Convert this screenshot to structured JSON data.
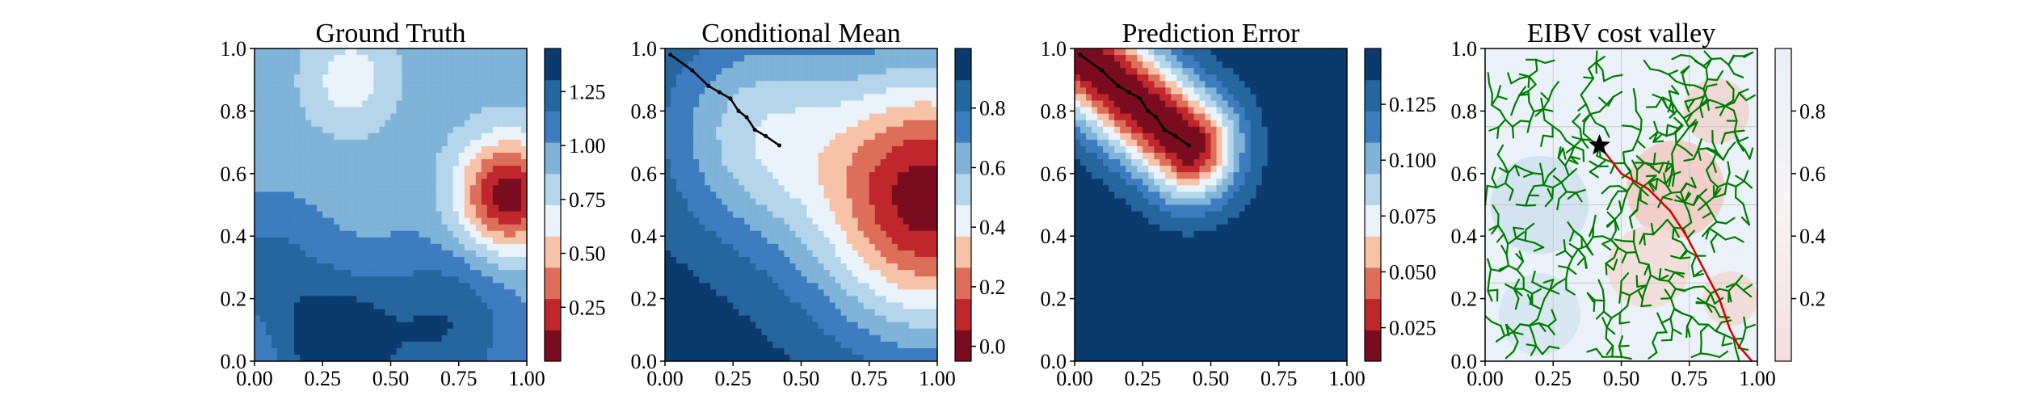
{
  "chart_data": [
    {
      "type": "heatmap",
      "title": "Ground Truth",
      "xlabel": "",
      "ylabel": "",
      "xlim": [
        0,
        1
      ],
      "ylim": [
        0,
        1
      ],
      "x_ticks": [
        "0.00",
        "0.25",
        "0.50",
        "0.75",
        "1.00"
      ],
      "y_ticks": [
        "0.0",
        "0.2",
        "0.4",
        "0.6",
        "0.8",
        "1.0"
      ],
      "colormap": "RdBu",
      "colorbar": {
        "range": [
          0.0,
          1.45
        ],
        "ticks": [
          "0.25",
          "0.50",
          "0.75",
          "1.00",
          "1.25"
        ],
        "tick_values": [
          0.25,
          0.5,
          0.75,
          1.0,
          1.25
        ]
      },
      "field_peaks": [
        {
          "x": 0.93,
          "y": 0.53,
          "value": 0.05,
          "radius": 0.13
        },
        {
          "x": 0.35,
          "y": 0.9,
          "value": 0.65,
          "radius": 0.12
        },
        {
          "x": 0.3,
          "y": 0.05,
          "value": 1.45,
          "radius": 0.15
        },
        {
          "x": 0.7,
          "y": 0.12,
          "value": 1.3,
          "radius": 0.18
        },
        {
          "x": 0.05,
          "y": 0.3,
          "value": 1.2,
          "radius": 0.15
        },
        {
          "x": 0.05,
          "y": 0.95,
          "value": 0.95,
          "radius": 0.15
        }
      ],
      "baseline": 0.95,
      "grid": false
    },
    {
      "type": "heatmap",
      "title": "Conditional Mean",
      "xlabel": "",
      "ylabel": "",
      "xlim": [
        0,
        1
      ],
      "ylim": [
        0,
        1
      ],
      "x_ticks": [
        "0.00",
        "0.25",
        "0.50",
        "0.75",
        "1.00"
      ],
      "y_ticks": [
        "0.0",
        "0.2",
        "0.4",
        "0.6",
        "0.8",
        "1.0"
      ],
      "colormap": "RdBu",
      "colorbar": {
        "range": [
          -0.05,
          1.0
        ],
        "ticks": [
          "0.0",
          "0.2",
          "0.4",
          "0.6",
          "0.8"
        ],
        "tick_values": [
          0.0,
          0.2,
          0.4,
          0.6,
          0.8
        ]
      },
      "field_peaks": [
        {
          "x": 0.97,
          "y": 0.52,
          "value": 0.0,
          "radius": 0.3
        },
        {
          "x": 0.33,
          "y": 0.73,
          "value": 0.55,
          "radius": 0.24
        }
      ],
      "baseline": 0.95,
      "path": [
        [
          0.02,
          0.98
        ],
        [
          0.1,
          0.93
        ],
        [
          0.16,
          0.88
        ],
        [
          0.2,
          0.86
        ],
        [
          0.24,
          0.84
        ],
        [
          0.27,
          0.8
        ],
        [
          0.3,
          0.78
        ],
        [
          0.33,
          0.74
        ],
        [
          0.37,
          0.72
        ],
        [
          0.42,
          0.69
        ]
      ],
      "grid": false
    },
    {
      "type": "heatmap",
      "title": "Prediction Error",
      "xlabel": "",
      "ylabel": "",
      "xlim": [
        0,
        1
      ],
      "ylim": [
        0,
        1
      ],
      "x_ticks": [
        "0.00",
        "0.25",
        "0.50",
        "0.75",
        "1.00"
      ],
      "y_ticks": [
        "0.0",
        "0.2",
        "0.4",
        "0.6",
        "0.8",
        "1.0"
      ],
      "colormap": "RdBu",
      "colorbar": {
        "range": [
          0.01,
          0.15
        ],
        "ticks": [
          "0.025",
          "0.050",
          "0.075",
          "0.100",
          "0.125"
        ],
        "tick_values": [
          0.025,
          0.05,
          0.075,
          0.1,
          0.125
        ]
      },
      "error_path": [
        [
          0.0,
          1.0
        ],
        [
          0.42,
          0.69
        ]
      ],
      "error_min": 0.01,
      "error_max": 0.145,
      "error_scale": 0.3,
      "path": [
        [
          0.02,
          0.98
        ],
        [
          0.1,
          0.93
        ],
        [
          0.16,
          0.88
        ],
        [
          0.2,
          0.86
        ],
        [
          0.24,
          0.84
        ],
        [
          0.27,
          0.8
        ],
        [
          0.3,
          0.78
        ],
        [
          0.33,
          0.74
        ],
        [
          0.37,
          0.72
        ],
        [
          0.42,
          0.69
        ]
      ],
      "grid": false
    },
    {
      "type": "heatmap",
      "title": "EIBV cost valley",
      "xlabel": "",
      "ylabel": "",
      "xlim": [
        0,
        1
      ],
      "ylim": [
        0,
        1
      ],
      "x_ticks": [
        "0.00",
        "0.25",
        "0.50",
        "0.75",
        "1.00"
      ],
      "y_ticks": [
        "0.0",
        "0.2",
        "0.4",
        "0.6",
        "0.8",
        "1.0"
      ],
      "colormap": "RdBu",
      "colorbar": {
        "range": [
          0.0,
          1.0
        ],
        "ticks": [
          "0.2",
          "0.4",
          "0.6",
          "0.8"
        ],
        "tick_values": [
          0.2,
          0.4,
          0.6,
          0.8
        ]
      },
      "start_point": [
        0.42,
        0.69
      ],
      "planned_path": [
        [
          0.42,
          0.69
        ],
        [
          0.5,
          0.6
        ],
        [
          0.6,
          0.55
        ],
        [
          0.68,
          0.48
        ],
        [
          0.74,
          0.4
        ],
        [
          0.8,
          0.3
        ],
        [
          0.86,
          0.2
        ],
        [
          0.9,
          0.1
        ],
        [
          0.93,
          0.05
        ],
        [
          0.98,
          0.0
        ]
      ],
      "tree_color": "#007d00",
      "path_color": "#d40000",
      "grid": true
    }
  ]
}
